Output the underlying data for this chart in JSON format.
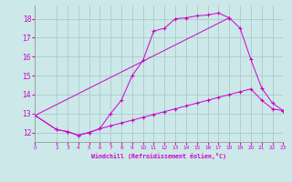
{
  "xlabel": "Windchill (Refroidissement éolien,°C)",
  "bg_color": "#cce8e8",
  "grid_color": "#aacccc",
  "line_color": "#cc00cc",
  "xlim": [
    0,
    23
  ],
  "ylim": [
    11.5,
    18.7
  ],
  "xticks": [
    0,
    2,
    3,
    4,
    5,
    6,
    7,
    8,
    9,
    10,
    11,
    12,
    13,
    14,
    15,
    16,
    17,
    18,
    19,
    20,
    21,
    22,
    23
  ],
  "yticks": [
    12,
    13,
    14,
    15,
    16,
    17,
    18
  ],
  "line1_x": [
    0,
    2,
    3,
    4,
    5,
    6,
    7,
    8,
    9,
    10,
    11,
    12,
    13,
    14,
    15,
    16,
    17,
    18
  ],
  "line1_y": [
    12.9,
    12.15,
    12.05,
    11.85,
    12.0,
    12.2,
    13.0,
    13.7,
    15.0,
    15.8,
    17.35,
    17.5,
    18.0,
    18.05,
    18.15,
    18.2,
    18.3,
    18.05
  ],
  "line2_x": [
    0,
    2,
    3,
    4,
    5,
    6,
    7,
    8,
    9,
    10,
    11,
    12,
    13,
    14,
    15,
    16,
    17,
    18,
    19,
    20,
    21,
    22,
    23
  ],
  "line2_y": [
    12.9,
    12.15,
    12.05,
    11.85,
    12.0,
    12.2,
    12.35,
    12.5,
    12.65,
    12.8,
    12.95,
    13.1,
    13.25,
    13.4,
    13.55,
    13.7,
    13.85,
    14.0,
    14.15,
    14.3,
    13.7,
    13.25,
    13.15
  ],
  "line3_x": [
    0,
    18,
    19,
    20,
    21,
    22,
    23
  ],
  "line3_y": [
    12.9,
    18.05,
    17.5,
    15.85,
    14.35,
    13.55,
    13.15
  ]
}
